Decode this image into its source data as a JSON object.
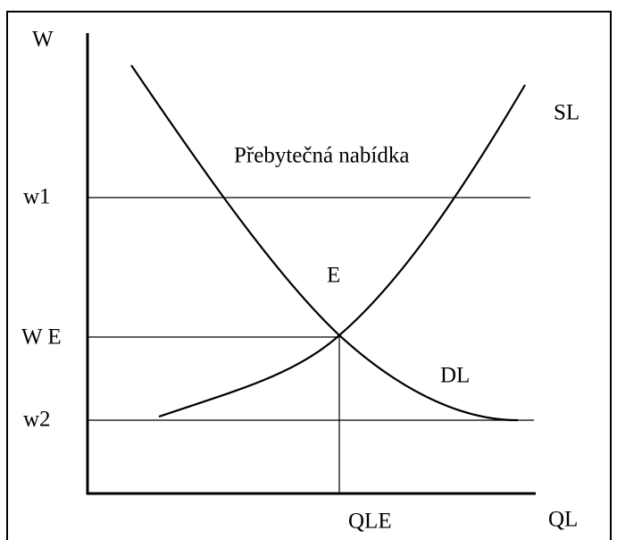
{
  "labels": {
    "y_axis": "W",
    "x_axis": "QL",
    "w1": "w1",
    "we": "W E",
    "w2": "w2",
    "qle": "QLE",
    "supply": "SL",
    "demand": "DL",
    "equilibrium": "E",
    "surplus": "Přebytečná nabídka"
  }
}
